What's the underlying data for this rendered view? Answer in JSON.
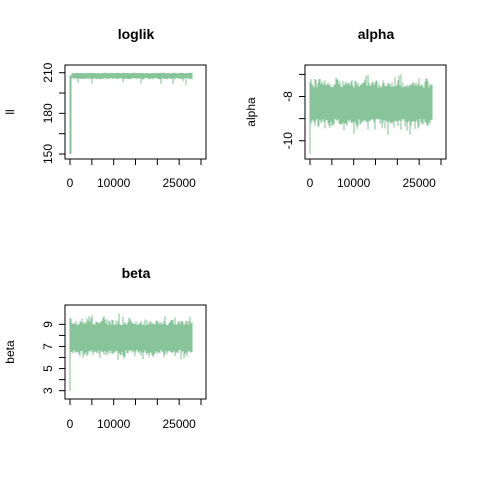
{
  "colors": {
    "trace": "#88c49a",
    "axis": "#000000",
    "background": "#ffffff"
  },
  "chart_data": [
    {
      "type": "line",
      "title": "loglik",
      "xlabel": "",
      "ylabel": "ll",
      "x_ticks": [
        "0",
        "10000",
        "25000"
      ],
      "y_ticks": [
        "150",
        "180",
        "210"
      ],
      "xlim": [
        0,
        30000
      ],
      "ylim": [
        150,
        212
      ],
      "trace": {
        "start": 150,
        "burnin": [
          150,
          208
        ],
        "min": 205,
        "max": 210,
        "low_spikes": 201
      },
      "grid": false
    },
    {
      "type": "line",
      "title": "alpha",
      "xlabel": "",
      "ylabel": "alpha",
      "x_ticks": [
        "0",
        "10000",
        "25000"
      ],
      "y_ticks": [
        "-10",
        "-8"
      ],
      "xlim": [
        0,
        30000
      ],
      "ylim": [
        -10.6,
        -6.8
      ],
      "trace": {
        "center": -8.3,
        "band": [
          -9.0,
          -7.6
        ],
        "min": -9.9,
        "max": -7.0,
        "start_spike": -10.6
      },
      "grid": false
    },
    {
      "type": "line",
      "title": "beta",
      "xlabel": "",
      "ylabel": "beta",
      "x_ticks": [
        "0",
        "10000",
        "25000"
      ],
      "y_ticks": [
        "3",
        "5",
        "7",
        "9"
      ],
      "xlim": [
        0,
        30000
      ],
      "ylim": [
        2.7,
        10.3
      ],
      "trace": {
        "center": 7.8,
        "band": [
          6.8,
          9.0
        ],
        "min": 5.7,
        "max": 10.0,
        "start_spike": 3.0
      },
      "grid": false
    }
  ]
}
